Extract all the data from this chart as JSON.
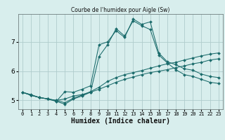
{
  "title": "Courbe de l'humidex pour Aigle (Sw)",
  "xlabel": "Humidex (Indice chaleur)",
  "bg_color": "#d8eeed",
  "grid_color": "#b0cccc",
  "line_color": "#1a6b6b",
  "x_values": [
    0,
    1,
    2,
    3,
    4,
    5,
    6,
    7,
    8,
    9,
    10,
    11,
    12,
    13,
    14,
    15,
    16,
    17,
    18,
    19,
    20,
    21,
    22,
    23
  ],
  "series1": [
    5.28,
    5.2,
    5.1,
    5.05,
    5.0,
    5.05,
    5.15,
    5.2,
    5.28,
    5.38,
    5.5,
    5.62,
    5.72,
    5.8,
    5.88,
    5.95,
    6.0,
    6.05,
    6.12,
    6.18,
    6.25,
    6.3,
    6.38,
    6.42
  ],
  "series2": [
    5.28,
    5.18,
    5.1,
    5.05,
    5.0,
    4.92,
    5.08,
    5.18,
    5.3,
    5.45,
    5.65,
    5.78,
    5.88,
    5.95,
    6.02,
    6.1,
    6.18,
    6.25,
    6.3,
    6.38,
    6.45,
    6.52,
    6.58,
    6.62
  ],
  "series3": [
    5.28,
    5.18,
    5.1,
    5.05,
    4.97,
    5.3,
    5.28,
    5.38,
    5.5,
    6.9,
    7.0,
    7.38,
    7.15,
    7.78,
    7.6,
    7.68,
    6.62,
    6.32,
    6.22,
    6.08,
    6.03,
    5.9,
    5.82,
    5.78
  ],
  "series4": [
    5.28,
    5.18,
    5.1,
    5.05,
    4.97,
    4.87,
    5.05,
    5.15,
    5.28,
    6.5,
    6.9,
    7.45,
    7.2,
    7.72,
    7.55,
    7.42,
    6.55,
    6.28,
    6.05,
    5.88,
    5.82,
    5.72,
    5.62,
    5.58
  ],
  "xlim": [
    -0.5,
    23.5
  ],
  "ylim": [
    4.7,
    7.95
  ],
  "yticks": [
    5,
    6,
    7
  ],
  "xticks": [
    0,
    1,
    2,
    3,
    4,
    5,
    6,
    7,
    8,
    9,
    10,
    11,
    12,
    13,
    14,
    15,
    16,
    17,
    18,
    19,
    20,
    21,
    22,
    23
  ]
}
